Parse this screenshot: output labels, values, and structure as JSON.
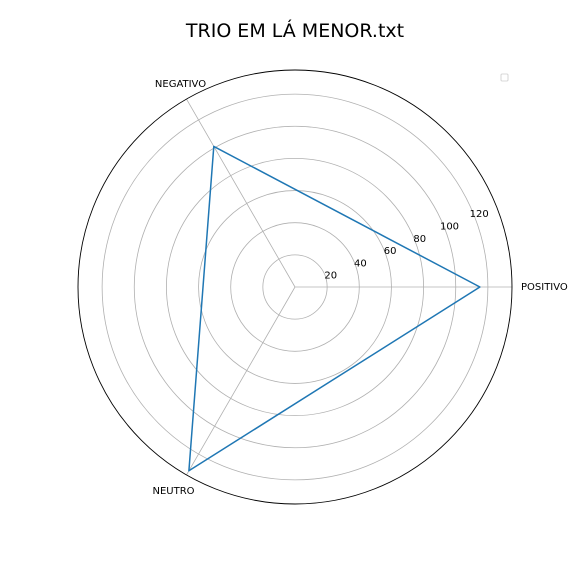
{
  "chart_data": {
    "type": "radar",
    "title": "TRIO EM LÁ MENOR.txt",
    "categories": [
      "POSITIVO",
      "NEGATIVO",
      "NEUTRO"
    ],
    "angles_deg": [
      0,
      120,
      240
    ],
    "series": [
      {
        "values": [
          115,
          101,
          132
        ],
        "color": "#1f77b4"
      }
    ],
    "rlim": [
      0,
      135
    ],
    "rticks": [
      20,
      40,
      60,
      80,
      100,
      120
    ],
    "grid": true,
    "legend": "top-right"
  }
}
